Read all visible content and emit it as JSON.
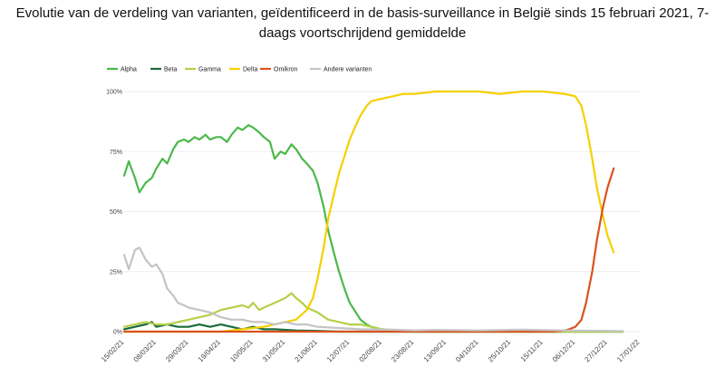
{
  "chart_data": {
    "type": "line",
    "title": "Evolutie van de verdeling van varianten, geïdentificeerd in de basis-surveillance in België sinds 15 februari 2021, 7-daags voortschrijdend gemiddelde",
    "legend_position": "top-left",
    "grid": true,
    "ylim": [
      0,
      100
    ],
    "yticks": [
      0,
      25,
      50,
      75,
      100
    ],
    "ytick_labels": [
      "0%",
      "25%",
      "50%",
      "75%",
      "100%"
    ],
    "xlim": [
      "2021-02-15",
      "2022-01-17"
    ],
    "xtick_labels": [
      "15/02/21",
      "08/03/21",
      "29/03/21",
      "19/04/21",
      "10/05/21",
      "31/05/21",
      "21/06/21",
      "12/07/21",
      "02/08/21",
      "23/08/21",
      "13/09/21",
      "04/10/21",
      "25/10/21",
      "15/11/21",
      "06/12/21",
      "27/12/21",
      "17/01/22"
    ],
    "series": [
      {
        "name": "Alpha",
        "color": "#4cb84a",
        "points": [
          [
            "2021-02-15",
            65
          ],
          [
            "2021-02-18",
            71
          ],
          [
            "2021-02-22",
            64
          ],
          [
            "2021-02-25",
            58
          ],
          [
            "2021-03-01",
            62
          ],
          [
            "2021-03-05",
            64
          ],
          [
            "2021-03-08",
            68
          ],
          [
            "2021-03-12",
            72
          ],
          [
            "2021-03-15",
            70
          ],
          [
            "2021-03-19",
            76
          ],
          [
            "2021-03-22",
            79
          ],
          [
            "2021-03-26",
            80
          ],
          [
            "2021-03-29",
            79
          ],
          [
            "2021-04-02",
            81
          ],
          [
            "2021-04-05",
            80
          ],
          [
            "2021-04-09",
            82
          ],
          [
            "2021-04-12",
            80
          ],
          [
            "2021-04-16",
            81
          ],
          [
            "2021-04-19",
            81
          ],
          [
            "2021-04-23",
            79
          ],
          [
            "2021-04-26",
            82
          ],
          [
            "2021-04-30",
            85
          ],
          [
            "2021-05-03",
            84
          ],
          [
            "2021-05-07",
            86
          ],
          [
            "2021-05-10",
            85
          ],
          [
            "2021-05-14",
            83
          ],
          [
            "2021-05-17",
            81
          ],
          [
            "2021-05-21",
            79
          ],
          [
            "2021-05-24",
            72
          ],
          [
            "2021-05-28",
            75
          ],
          [
            "2021-05-31",
            74
          ],
          [
            "2021-06-04",
            78
          ],
          [
            "2021-06-07",
            76
          ],
          [
            "2021-06-11",
            72
          ],
          [
            "2021-06-14",
            70
          ],
          [
            "2021-06-18",
            67
          ],
          [
            "2021-06-21",
            62
          ],
          [
            "2021-06-25",
            52
          ],
          [
            "2021-06-28",
            42
          ],
          [
            "2021-07-02",
            32
          ],
          [
            "2021-07-05",
            25
          ],
          [
            "2021-07-09",
            17
          ],
          [
            "2021-07-12",
            12
          ],
          [
            "2021-07-16",
            8
          ],
          [
            "2021-07-19",
            5
          ],
          [
            "2021-07-23",
            3
          ],
          [
            "2021-07-26",
            2
          ],
          [
            "2021-08-02",
            1
          ],
          [
            "2021-08-09",
            0.5
          ],
          [
            "2021-08-23",
            0
          ],
          [
            "2022-01-06",
            0
          ]
        ]
      },
      {
        "name": "Beta",
        "color": "#1a6b3a",
        "points": [
          [
            "2021-02-15",
            1
          ],
          [
            "2021-02-22",
            2
          ],
          [
            "2021-03-01",
            3
          ],
          [
            "2021-03-05",
            4
          ],
          [
            "2021-03-08",
            2
          ],
          [
            "2021-03-15",
            3
          ],
          [
            "2021-03-22",
            2
          ],
          [
            "2021-03-29",
            2
          ],
          [
            "2021-04-05",
            3
          ],
          [
            "2021-04-12",
            2
          ],
          [
            "2021-04-19",
            3
          ],
          [
            "2021-04-26",
            2
          ],
          [
            "2021-05-03",
            1
          ],
          [
            "2021-05-10",
            2
          ],
          [
            "2021-05-17",
            1
          ],
          [
            "2021-05-24",
            1
          ],
          [
            "2021-06-07",
            0.5
          ],
          [
            "2021-06-21",
            0.3
          ],
          [
            "2021-07-05",
            0
          ],
          [
            "2022-01-06",
            0
          ]
        ]
      },
      {
        "name": "Gamma",
        "color": "#b5cf48",
        "points": [
          [
            "2021-02-15",
            2
          ],
          [
            "2021-02-22",
            3
          ],
          [
            "2021-03-01",
            4
          ],
          [
            "2021-03-08",
            3
          ],
          [
            "2021-03-15",
            3
          ],
          [
            "2021-03-22",
            4
          ],
          [
            "2021-03-29",
            5
          ],
          [
            "2021-04-05",
            6
          ],
          [
            "2021-04-12",
            7
          ],
          [
            "2021-04-19",
            9
          ],
          [
            "2021-04-26",
            10
          ],
          [
            "2021-05-03",
            11
          ],
          [
            "2021-05-07",
            10
          ],
          [
            "2021-05-10",
            12
          ],
          [
            "2021-05-14",
            9
          ],
          [
            "2021-05-17",
            10
          ],
          [
            "2021-05-24",
            12
          ],
          [
            "2021-05-31",
            14
          ],
          [
            "2021-06-04",
            16
          ],
          [
            "2021-06-07",
            14
          ],
          [
            "2021-06-11",
            12
          ],
          [
            "2021-06-14",
            10
          ],
          [
            "2021-06-21",
            8
          ],
          [
            "2021-06-28",
            5
          ],
          [
            "2021-07-05",
            4
          ],
          [
            "2021-07-12",
            3
          ],
          [
            "2021-07-19",
            3
          ],
          [
            "2021-07-26",
            2
          ],
          [
            "2021-08-02",
            1
          ],
          [
            "2021-08-16",
            0.5
          ],
          [
            "2021-08-30",
            0
          ],
          [
            "2022-01-06",
            0
          ]
        ]
      },
      {
        "name": "Delta",
        "color": "#f5d000",
        "points": [
          [
            "2021-02-15",
            0
          ],
          [
            "2021-04-19",
            0
          ],
          [
            "2021-05-03",
            1
          ],
          [
            "2021-05-17",
            2
          ],
          [
            "2021-05-24",
            3
          ],
          [
            "2021-05-31",
            4
          ],
          [
            "2021-06-07",
            5
          ],
          [
            "2021-06-14",
            9
          ],
          [
            "2021-06-18",
            14
          ],
          [
            "2021-06-21",
            22
          ],
          [
            "2021-06-25",
            35
          ],
          [
            "2021-06-28",
            47
          ],
          [
            "2021-07-02",
            58
          ],
          [
            "2021-07-05",
            66
          ],
          [
            "2021-07-09",
            74
          ],
          [
            "2021-07-12",
            80
          ],
          [
            "2021-07-16",
            86
          ],
          [
            "2021-07-19",
            90
          ],
          [
            "2021-07-23",
            94
          ],
          [
            "2021-07-26",
            96
          ],
          [
            "2021-08-02",
            97
          ],
          [
            "2021-08-09",
            98
          ],
          [
            "2021-08-16",
            99
          ],
          [
            "2021-08-23",
            99
          ],
          [
            "2021-09-06",
            100
          ],
          [
            "2021-10-04",
            100
          ],
          [
            "2021-10-18",
            99
          ],
          [
            "2021-11-01",
            100
          ],
          [
            "2021-11-15",
            100
          ],
          [
            "2021-11-29",
            99
          ],
          [
            "2021-12-06",
            98
          ],
          [
            "2021-12-10",
            94
          ],
          [
            "2021-12-13",
            86
          ],
          [
            "2021-12-17",
            72
          ],
          [
            "2021-12-20",
            60
          ],
          [
            "2021-12-24",
            48
          ],
          [
            "2021-12-27",
            40
          ],
          [
            "2021-12-31",
            33
          ]
        ]
      },
      {
        "name": "Omikron",
        "color": "#d9531e",
        "points": [
          [
            "2021-02-15",
            0
          ],
          [
            "2021-11-22",
            0
          ],
          [
            "2021-11-29",
            0.5
          ],
          [
            "2021-12-02",
            1
          ],
          [
            "2021-12-06",
            2
          ],
          [
            "2021-12-10",
            5
          ],
          [
            "2021-12-13",
            12
          ],
          [
            "2021-12-17",
            25
          ],
          [
            "2021-12-20",
            38
          ],
          [
            "2021-12-24",
            52
          ],
          [
            "2021-12-27",
            60
          ],
          [
            "2021-12-31",
            68
          ]
        ]
      },
      {
        "name": "Andere varianten",
        "color": "#c4c4c4",
        "points": [
          [
            "2021-02-15",
            32
          ],
          [
            "2021-02-18",
            26
          ],
          [
            "2021-02-22",
            34
          ],
          [
            "2021-02-25",
            35
          ],
          [
            "2021-03-01",
            30
          ],
          [
            "2021-03-05",
            27
          ],
          [
            "2021-03-08",
            28
          ],
          [
            "2021-03-12",
            24
          ],
          [
            "2021-03-15",
            18
          ],
          [
            "2021-03-19",
            15
          ],
          [
            "2021-03-22",
            12
          ],
          [
            "2021-03-26",
            11
          ],
          [
            "2021-03-29",
            10
          ],
          [
            "2021-04-05",
            9
          ],
          [
            "2021-04-12",
            8
          ],
          [
            "2021-04-19",
            6
          ],
          [
            "2021-04-26",
            5
          ],
          [
            "2021-05-03",
            5
          ],
          [
            "2021-05-10",
            4
          ],
          [
            "2021-05-17",
            4
          ],
          [
            "2021-05-24",
            3
          ],
          [
            "2021-05-31",
            4
          ],
          [
            "2021-06-07",
            3
          ],
          [
            "2021-06-14",
            3
          ],
          [
            "2021-06-21",
            2
          ],
          [
            "2021-07-05",
            1.5
          ],
          [
            "2021-07-19",
            1
          ],
          [
            "2021-08-09",
            0.8
          ],
          [
            "2021-08-23",
            0.5
          ],
          [
            "2021-09-06",
            0.7
          ],
          [
            "2021-10-04",
            0.5
          ],
          [
            "2021-11-01",
            0.8
          ],
          [
            "2021-11-29",
            0.5
          ],
          [
            "2021-12-27",
            0.3
          ],
          [
            "2022-01-06",
            0.2
          ]
        ]
      }
    ]
  }
}
